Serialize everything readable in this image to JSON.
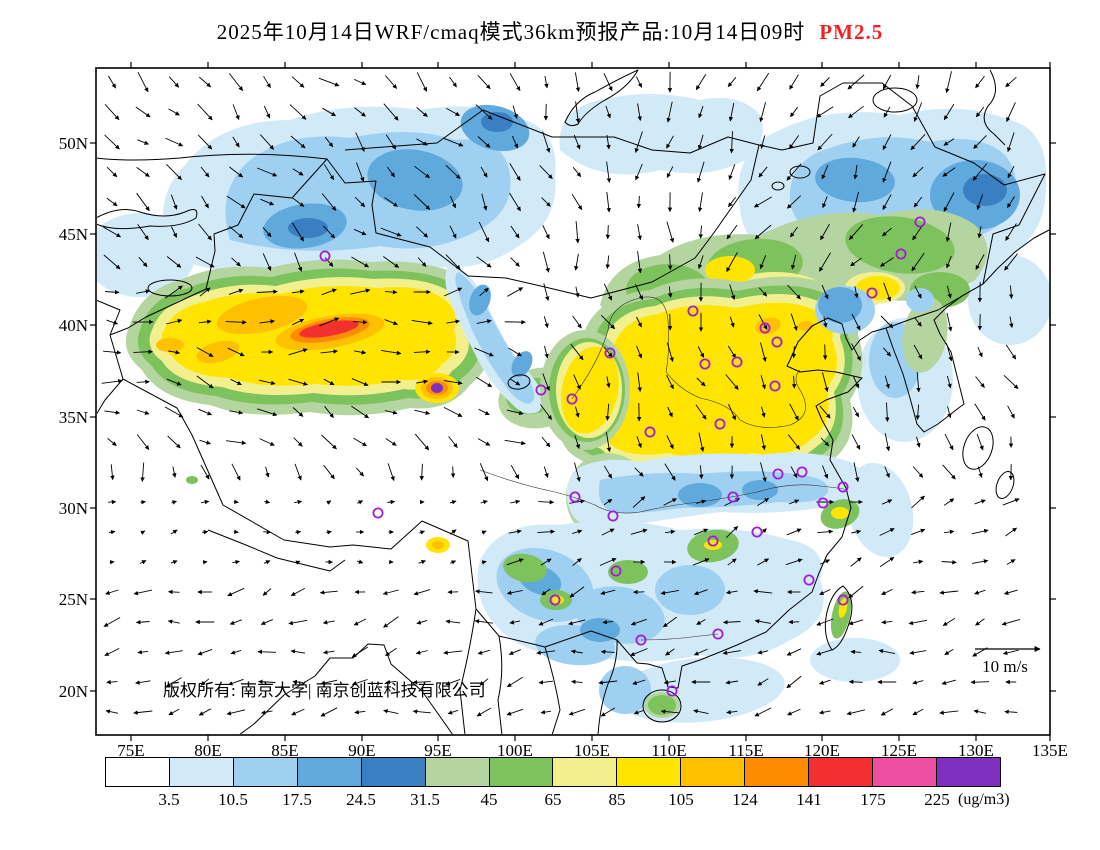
{
  "title": {
    "main": "2025年10月14日WRF/cmaq模式36km预报产品:10月14日09时",
    "species": "PM2.5",
    "species_color": "#f22222"
  },
  "map": {
    "lat_labels": [
      "50N",
      "45N",
      "40N",
      "35N",
      "30N",
      "25N",
      "20N"
    ],
    "lon_labels": [
      "75E",
      "80E",
      "85E",
      "90E",
      "95E",
      "100E",
      "105E",
      "110E",
      "115E",
      "120E",
      "125E",
      "130E",
      "135E"
    ],
    "copyright": "版权所有: 南京大学| 南京创蓝科技有限公司",
    "wind_scale_label": "10 m/s",
    "city_markers": [
      [
        325,
        256
      ],
      [
        920,
        222
      ],
      [
        901,
        254
      ],
      [
        872,
        293
      ],
      [
        693,
        311
      ],
      [
        765,
        328
      ],
      [
        777,
        342
      ],
      [
        610,
        353
      ],
      [
        705,
        364
      ],
      [
        737,
        362
      ],
      [
        775,
        386
      ],
      [
        541,
        390
      ],
      [
        572,
        399
      ],
      [
        650,
        432
      ],
      [
        720,
        424
      ],
      [
        778,
        474
      ],
      [
        802,
        472
      ],
      [
        843,
        487
      ],
      [
        823,
        503
      ],
      [
        733,
        497
      ],
      [
        575,
        497
      ],
      [
        613,
        516
      ],
      [
        713,
        541
      ],
      [
        757,
        532
      ],
      [
        616,
        571
      ],
      [
        555,
        600
      ],
      [
        809,
        580
      ],
      [
        718,
        634
      ],
      [
        641,
        640
      ],
      [
        672,
        691
      ],
      [
        378,
        513
      ],
      [
        843,
        600
      ]
    ]
  },
  "colorbar": {
    "unit": "(ug/m3)",
    "tick_labels": [
      "3.5",
      "10.5",
      "17.5",
      "24.5",
      "31.5",
      "45",
      "65",
      "85",
      "105",
      "124",
      "141",
      "175",
      "225"
    ],
    "colors": [
      "#ffffff",
      "#d2e9f8",
      "#9fd0f1",
      "#60a9dd",
      "#3a7fc1",
      "#b5d5a0",
      "#7ec25e",
      "#f2f08e",
      "#ffe400",
      "#ffc000",
      "#ff8c00",
      "#f23030",
      "#ee4fa0",
      "#8030c0"
    ]
  }
}
